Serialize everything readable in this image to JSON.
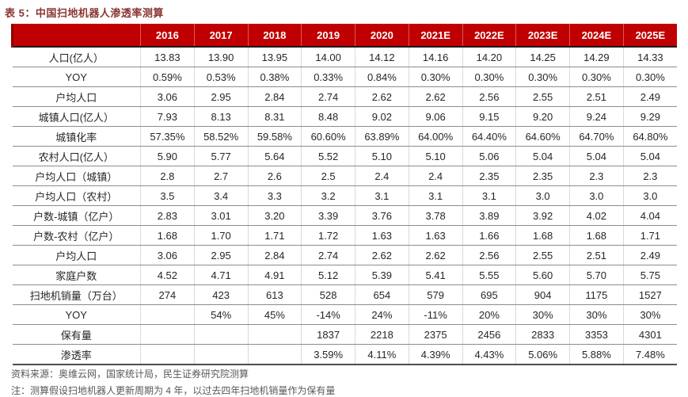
{
  "title": "表 5：中国扫地机器人渗透率测算",
  "colors": {
    "header_bg": "#C00000",
    "title_text": "#8A3532",
    "footer_text": "#595959"
  },
  "table": {
    "header": [
      "",
      "2016",
      "2017",
      "2018",
      "2019",
      "2020",
      "2021E",
      "2022E",
      "2023E",
      "2024E",
      "2025E"
    ],
    "rows": [
      {
        "label": "人口(亿人）",
        "values": [
          "13.83",
          "13.90",
          "13.95",
          "14.00",
          "14.12",
          "14.16",
          "14.20",
          "14.25",
          "14.29",
          "14.33"
        ]
      },
      {
        "label": "YOY",
        "values": [
          "0.59%",
          "0.53%",
          "0.38%",
          "0.33%",
          "0.84%",
          "0.30%",
          "0.30%",
          "0.30%",
          "0.30%",
          "0.30%"
        ]
      },
      {
        "label": "户均人口",
        "values": [
          "3.06",
          "2.95",
          "2.84",
          "2.74",
          "2.62",
          "2.62",
          "2.56",
          "2.55",
          "2.51",
          "2.49"
        ]
      },
      {
        "label": "城镇人口(亿人）",
        "values": [
          "7.93",
          "8.13",
          "8.31",
          "8.48",
          "9.02",
          "9.06",
          "9.15",
          "9.20",
          "9.24",
          "9.29"
        ]
      },
      {
        "label": "城镇化率",
        "values": [
          "57.35%",
          "58.52%",
          "59.58%",
          "60.60%",
          "63.89%",
          "64.00%",
          "64.40%",
          "64.60%",
          "64.70%",
          "64.80%"
        ]
      },
      {
        "label": "农村人口(亿人）",
        "values": [
          "5.90",
          "5.77",
          "5.64",
          "5.52",
          "5.10",
          "5.10",
          "5.06",
          "5.04",
          "5.04",
          "5.04"
        ]
      },
      {
        "label": "户均人口（城镇）",
        "values": [
          "2.8",
          "2.7",
          "2.6",
          "2.5",
          "2.4",
          "2.4",
          "2.35",
          "2.35",
          "2.3",
          "2.3"
        ]
      },
      {
        "label": "户均人口（农村）",
        "values": [
          "3.5",
          "3.4",
          "3.3",
          "3.2",
          "3.1",
          "3.1",
          "3.1",
          "3.0",
          "3.0",
          "3.0"
        ]
      },
      {
        "label": "户数-城镇（亿户）",
        "values": [
          "2.83",
          "3.01",
          "3.20",
          "3.39",
          "3.76",
          "3.78",
          "3.89",
          "3.92",
          "4.02",
          "4.04"
        ]
      },
      {
        "label": "户数-农村（亿户）",
        "values": [
          "1.68",
          "1.70",
          "1.71",
          "1.72",
          "1.63",
          "1.63",
          "1.66",
          "1.68",
          "1.68",
          "1.71"
        ]
      },
      {
        "label": "户均人口",
        "values": [
          "3.06",
          "2.95",
          "2.84",
          "2.74",
          "2.62",
          "2.62",
          "2.56",
          "2.55",
          "2.51",
          "2.49"
        ]
      },
      {
        "label": "家庭户数",
        "values": [
          "4.52",
          "4.71",
          "4.91",
          "5.12",
          "5.39",
          "5.41",
          "5.55",
          "5.60",
          "5.70",
          "5.75"
        ]
      },
      {
        "label": "扫地机销量（万台）",
        "values": [
          "274",
          "423",
          "613",
          "528",
          "654",
          "579",
          "695",
          "904",
          "1175",
          "1527"
        ]
      },
      {
        "label": "YOY",
        "values": [
          "",
          "54%",
          "45%",
          "-14%",
          "24%",
          "-11%",
          "20%",
          "30%",
          "30%",
          "30%"
        ]
      },
      {
        "label": "保有量",
        "values": [
          "",
          "",
          "",
          "1837",
          "2218",
          "2375",
          "2456",
          "2833",
          "3353",
          "4301"
        ]
      },
      {
        "label": "渗透率",
        "values": [
          "",
          "",
          "",
          "3.59%",
          "4.11%",
          "4.39%",
          "4.43%",
          "5.06%",
          "5.88%",
          "7.48%"
        ]
      }
    ]
  },
  "footer": {
    "source": "资料来源：奥维云网，国家统计局，民生证券研究院测算",
    "note": "注：测算假设扫地机器人更新周期为 4 年，以过去四年扫地机销量作为保有量"
  }
}
